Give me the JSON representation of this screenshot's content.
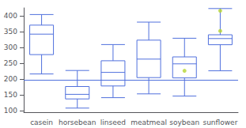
{
  "chart_data": {
    "type": "box",
    "categories": [
      "casein",
      "horsebean",
      "linseed",
      "meatmeal",
      "soybean",
      "sunflower"
    ],
    "boxes": [
      {
        "q1": 277.25,
        "median": 342.0,
        "q3": 370.5,
        "whisker_low": 216.0,
        "whisker_high": 404.0,
        "outliers": []
      },
      {
        "q1": 137.0,
        "median": 151.5,
        "q3": 176.25,
        "whisker_low": 108.0,
        "whisker_high": 227.0,
        "outliers": []
      },
      {
        "q1": 178.0,
        "median": 221.0,
        "q3": 257.75,
        "whisker_low": 141.0,
        "whisker_high": 309.0,
        "outliers": []
      },
      {
        "q1": 204.5,
        "median": 263.0,
        "q3": 323.0,
        "whisker_low": 153.0,
        "whisker_high": 380.0,
        "outliers": []
      },
      {
        "q1": 203.5,
        "median": 248.0,
        "q3": 270.0,
        "whisker_low": 146.0,
        "whisker_high": 329.0,
        "outliers": [
          226.0
        ]
      },
      {
        "q1": 308.5,
        "median": 328.0,
        "q3": 340.0,
        "whisker_low": 226.0,
        "whisker_high": 423.0,
        "outliers": [
          352.0,
          416.0
        ]
      }
    ],
    "reference_line": 197,
    "ylim": [
      95,
      425
    ],
    "yticks": [
      100,
      150,
      200,
      250,
      300,
      350,
      400
    ],
    "grid": false
  }
}
